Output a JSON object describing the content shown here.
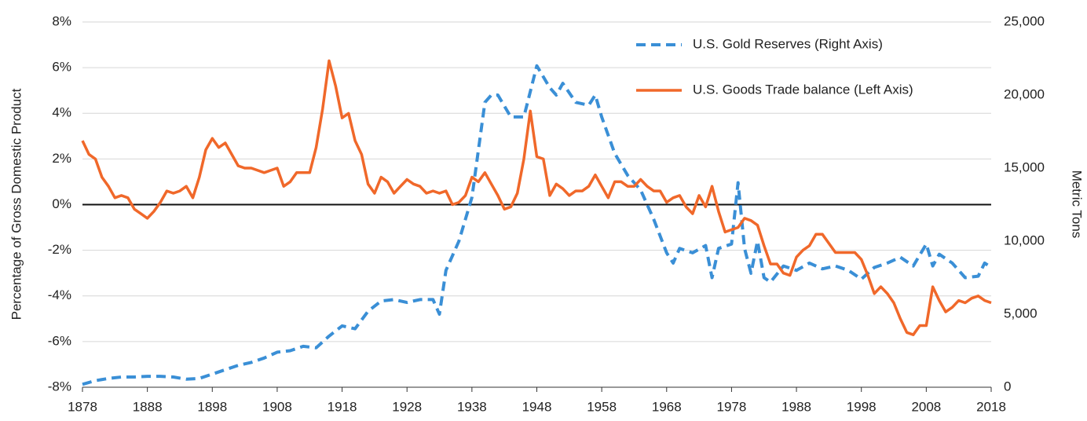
{
  "chart_data": {
    "type": "line",
    "ylabel": "Percentage of Gross Domestic Product",
    "y2label": "Metric Tons",
    "xlim": [
      1878,
      2018
    ],
    "xticks": [
      1878,
      1888,
      1898,
      1908,
      1918,
      1928,
      1938,
      1948,
      1958,
      1968,
      1978,
      1988,
      1998,
      2008,
      2018
    ],
    "ylim": [
      -8,
      8
    ],
    "yticks": [
      {
        "value": -8,
        "label": "-8%"
      },
      {
        "value": -6,
        "label": "-6%"
      },
      {
        "value": -4,
        "label": "-4%"
      },
      {
        "value": -2,
        "label": "-2%"
      },
      {
        "value": 0,
        "label": "0%"
      },
      {
        "value": 2,
        "label": "2%"
      },
      {
        "value": 4,
        "label": "4%"
      },
      {
        "value": 6,
        "label": "6%"
      },
      {
        "value": 8,
        "label": "8%"
      }
    ],
    "y2lim": [
      0,
      25000
    ],
    "y2ticks": [
      0,
      {
        "value": 5000,
        "label": "5,000"
      },
      {
        "value": 10000,
        "label": "10,000"
      },
      {
        "value": 15000,
        "label": "15,000"
      },
      {
        "value": 20000,
        "label": "20,000"
      },
      {
        "value": 25000,
        "label": "25,000"
      }
    ],
    "grid": true,
    "legend": "upper right",
    "series": [
      {
        "name": "U.S. Gold Reserves (Right Axis)",
        "color": "#3a8fd6",
        "dashed": true,
        "axis": "y2",
        "x": [
          1878,
          1880,
          1882,
          1884,
          1886,
          1888,
          1890,
          1892,
          1894,
          1896,
          1898,
          1900,
          1902,
          1904,
          1906,
          1908,
          1910,
          1912,
          1914,
          1916,
          1918,
          1920,
          1922,
          1924,
          1926,
          1928,
          1930,
          1932,
          1933,
          1934,
          1936,
          1938,
          1940,
          1941,
          1942,
          1944,
          1946,
          1948,
          1950,
          1951,
          1952,
          1954,
          1956,
          1957,
          1958,
          1960,
          1962,
          1964,
          1966,
          1968,
          1969,
          1970,
          1972,
          1974,
          1975,
          1976,
          1978,
          1979,
          1980,
          1981,
          1982,
          1983,
          1984,
          1986,
          1988,
          1990,
          1992,
          1994,
          1996,
          1998,
          2000,
          2002,
          2004,
          2006,
          2008,
          2009,
          2010,
          2012,
          2014,
          2016,
          2017,
          2018
        ],
        "values": [
          200,
          450,
          600,
          700,
          700,
          750,
          750,
          700,
          550,
          600,
          900,
          1200,
          1500,
          1700,
          2000,
          2400,
          2500,
          2800,
          2700,
          3500,
          4200,
          4000,
          5200,
          5900,
          6000,
          5800,
          6000,
          6000,
          5000,
          8000,
          10000,
          13000,
          19500,
          20000,
          20000,
          18500,
          18500,
          22000,
          20500,
          20000,
          20800,
          19500,
          19300,
          20000,
          18500,
          16000,
          14500,
          13500,
          11500,
          9200,
          8500,
          9500,
          9200,
          9700,
          7500,
          9500,
          9800,
          14000,
          9500,
          7800,
          10000,
          7500,
          7200,
          8300,
          8000,
          8500,
          8100,
          8300,
          8000,
          7400,
          8200,
          8500,
          8900,
          8300,
          9800,
          8300,
          9100,
          8500,
          7500,
          7600,
          8500,
          8200
        ]
      },
      {
        "name": "U.S. Goods Trade balance (Left Axis)",
        "color": "#f0682a",
        "dashed": false,
        "axis": "y",
        "x": [
          1878,
          1879,
          1880,
          1881,
          1882,
          1883,
          1884,
          1885,
          1886,
          1887,
          1888,
          1889,
          1890,
          1891,
          1892,
          1893,
          1894,
          1895,
          1896,
          1897,
          1898,
          1899,
          1900,
          1901,
          1902,
          1903,
          1904,
          1905,
          1906,
          1907,
          1908,
          1909,
          1910,
          1911,
          1912,
          1913,
          1914,
          1915,
          1916,
          1917,
          1918,
          1919,
          1920,
          1921,
          1922,
          1923,
          1924,
          1925,
          1926,
          1927,
          1928,
          1929,
          1930,
          1931,
          1932,
          1933,
          1934,
          1935,
          1936,
          1937,
          1938,
          1939,
          1940,
          1941,
          1942,
          1943,
          1944,
          1945,
          1946,
          1947,
          1948,
          1949,
          1950,
          1951,
          1952,
          1953,
          1954,
          1955,
          1956,
          1957,
          1958,
          1959,
          1960,
          1961,
          1962,
          1963,
          1964,
          1965,
          1966,
          1967,
          1968,
          1969,
          1970,
          1971,
          1972,
          1973,
          1974,
          1975,
          1976,
          1977,
          1978,
          1979,
          1980,
          1981,
          1982,
          1983,
          1984,
          1985,
          1986,
          1987,
          1988,
          1989,
          1990,
          1991,
          1992,
          1993,
          1994,
          1995,
          1996,
          1997,
          1998,
          1999,
          2000,
          2001,
          2002,
          2003,
          2004,
          2005,
          2006,
          2007,
          2008,
          2009,
          2010,
          2011,
          2012,
          2013,
          2014,
          2015,
          2016,
          2017,
          2018
        ],
        "values": [
          2.8,
          2.2,
          2.0,
          1.2,
          0.8,
          0.3,
          0.4,
          0.3,
          -0.2,
          -0.4,
          -0.6,
          -0.3,
          0.1,
          0.6,
          0.5,
          0.6,
          0.8,
          0.3,
          1.2,
          2.4,
          2.9,
          2.5,
          2.7,
          2.2,
          1.7,
          1.6,
          1.6,
          1.5,
          1.4,
          1.5,
          1.6,
          0.8,
          1.0,
          1.4,
          1.4,
          1.4,
          2.5,
          4.2,
          6.3,
          5.2,
          3.8,
          4.0,
          2.8,
          2.2,
          0.9,
          0.5,
          1.2,
          1.0,
          0.5,
          0.8,
          1.1,
          0.9,
          0.8,
          0.5,
          0.6,
          0.5,
          0.6,
          0.0,
          0.1,
          0.4,
          1.2,
          1.0,
          1.4,
          0.9,
          0.4,
          -0.2,
          -0.1,
          0.5,
          2.0,
          4.1,
          2.1,
          2.0,
          0.4,
          0.9,
          0.7,
          0.4,
          0.6,
          0.6,
          0.8,
          1.3,
          0.8,
          0.3,
          1.0,
          1.0,
          0.8,
          0.8,
          1.1,
          0.8,
          0.6,
          0.6,
          0.1,
          0.3,
          0.4,
          -0.1,
          -0.4,
          0.4,
          -0.1,
          0.8,
          -0.3,
          -1.2,
          -1.1,
          -1.0,
          -0.6,
          -0.7,
          -0.9,
          -1.8,
          -2.6,
          -2.6,
          -3.0,
          -3.1,
          -2.3,
          -2.0,
          -1.8,
          -1.3,
          -1.3,
          -1.7,
          -2.1,
          -2.1,
          -2.1,
          -2.1,
          -2.4,
          -3.1,
          -3.9,
          -3.6,
          -3.9,
          -4.3,
          -5.0,
          -5.6,
          -5.7,
          -5.3,
          -5.3,
          -3.6,
          -4.2,
          -4.7,
          -4.5,
          -4.2,
          -4.3,
          -4.1,
          -4.0,
          -4.2,
          -4.3
        ]
      }
    ]
  }
}
